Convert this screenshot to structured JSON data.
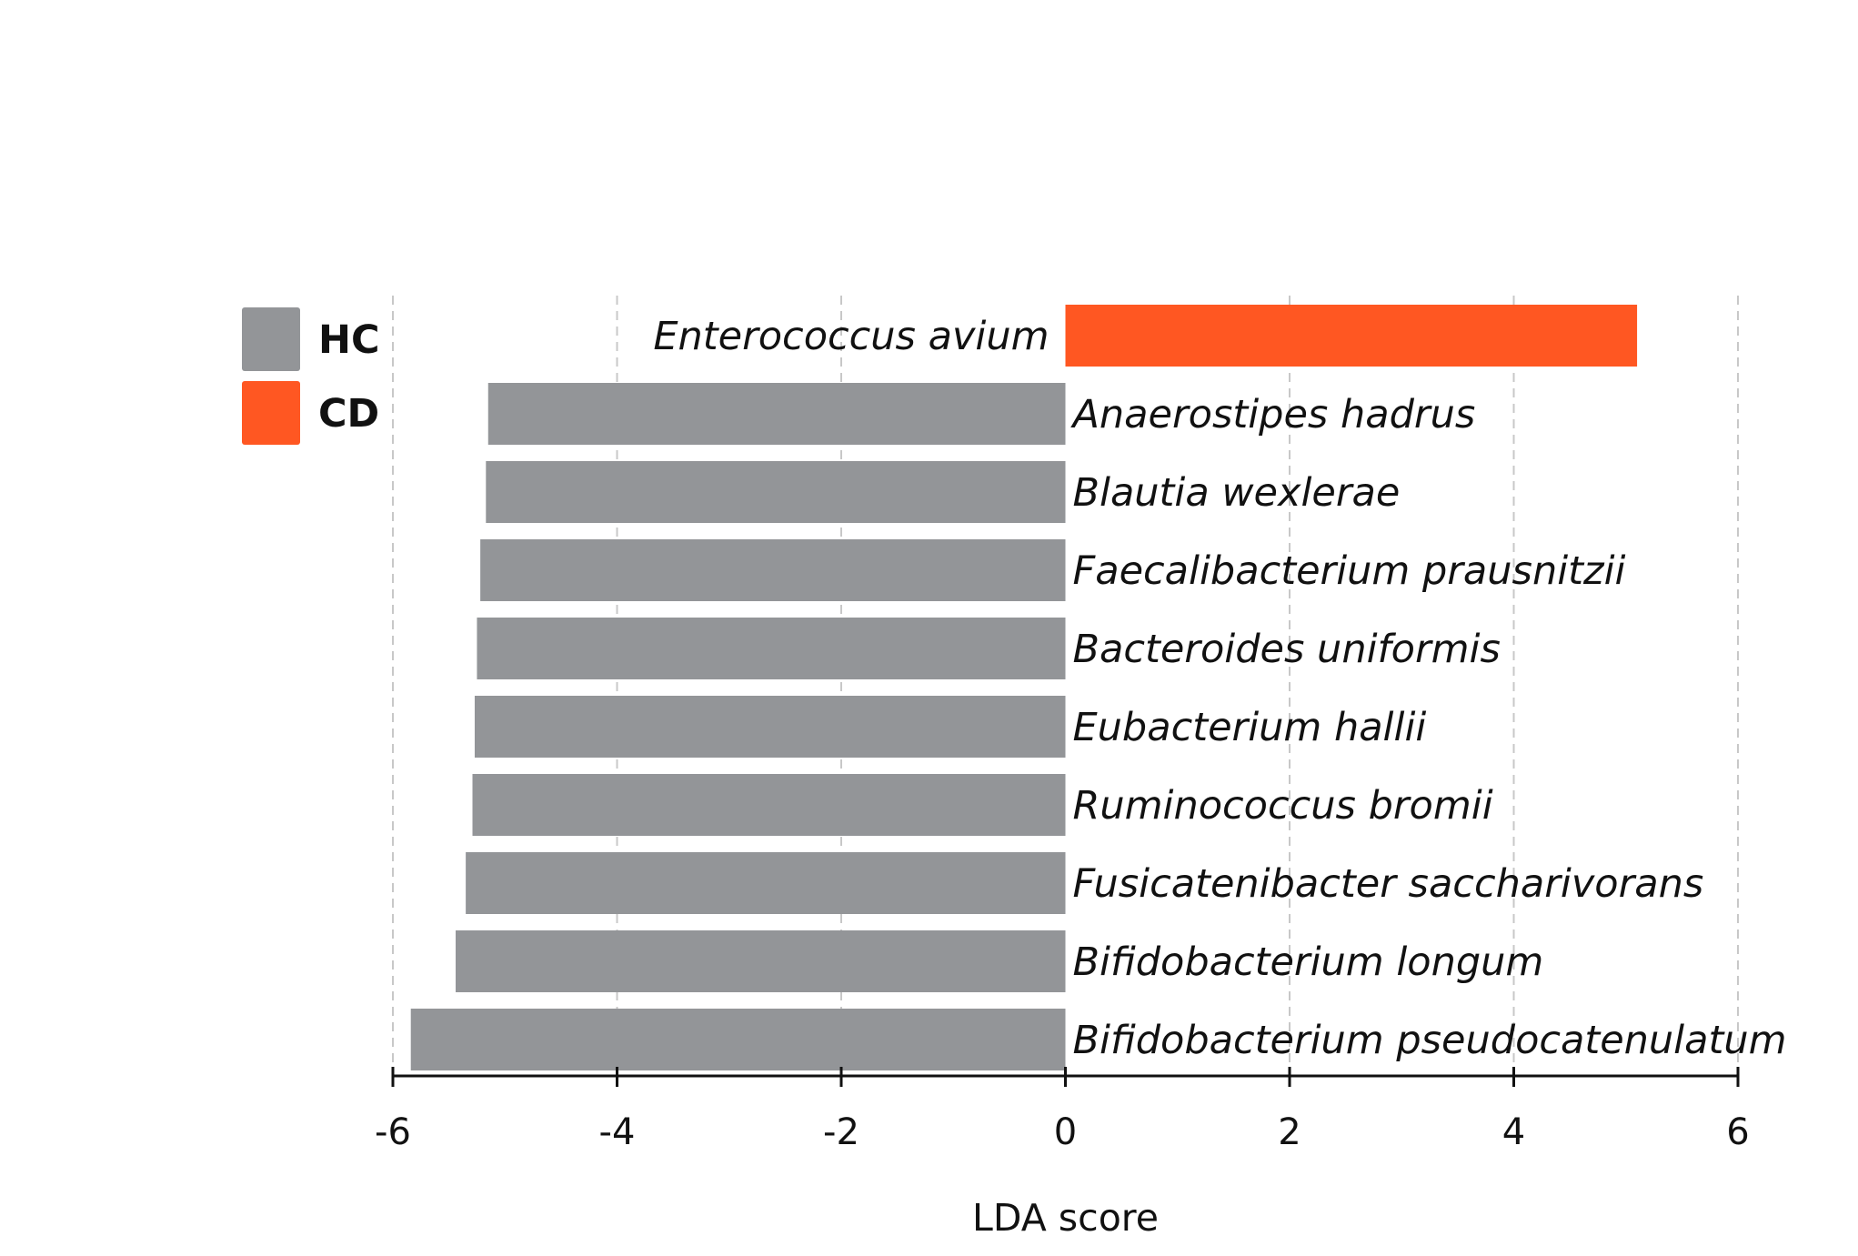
{
  "chart_data": {
    "type": "bar",
    "orientation": "horizontal",
    "xlabel": "LDA score",
    "xlim": [
      -6,
      6
    ],
    "xticks": [
      -6,
      -4,
      -2,
      0,
      2,
      4,
      6
    ],
    "grid": true,
    "legend": {
      "position": "top-left",
      "entries": [
        {
          "label": "HC",
          "color": "#939598"
        },
        {
          "label": "CD",
          "color": "#ff5722"
        }
      ]
    },
    "bars": [
      {
        "label": "Enterococcus avium",
        "value": 5.1,
        "group": "CD"
      },
      {
        "label": "Anaerostipes hadrus",
        "value": -5.15,
        "group": "HC"
      },
      {
        "label": "Blautia wexlerae",
        "value": -5.17,
        "group": "HC"
      },
      {
        "label": "Faecalibacterium prausnitzii",
        "value": -5.22,
        "group": "HC"
      },
      {
        "label": "Bacteroides uniformis",
        "value": -5.25,
        "group": "HC"
      },
      {
        "label": "Eubacterium hallii",
        "value": -5.27,
        "group": "HC"
      },
      {
        "label": "Ruminococcus bromii",
        "value": -5.29,
        "group": "HC"
      },
      {
        "label": "Fusicatenibacter saccharivorans",
        "value": -5.35,
        "group": "HC"
      },
      {
        "label": "Bifidobacterium longum",
        "value": -5.44,
        "group": "HC"
      },
      {
        "label": "Bifidobacterium pseudocatenulatum",
        "value": -5.84,
        "group": "HC"
      }
    ]
  }
}
